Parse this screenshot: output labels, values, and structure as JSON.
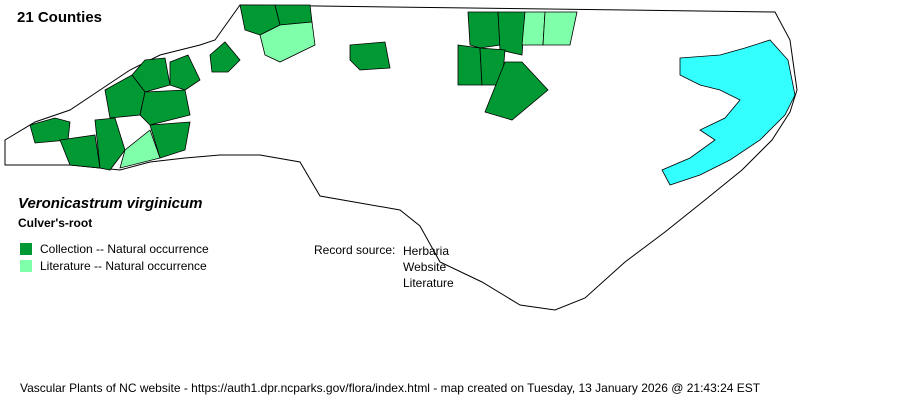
{
  "title": "21 Counties",
  "species": {
    "scientific": "Veronicastrum virginicum",
    "common": "Culver's-root"
  },
  "legend": [
    {
      "label": "Collection -- Natural occurrence",
      "color": "#009933"
    },
    {
      "label": "Literature -- Natural occurrence",
      "color": "#80ffaa"
    }
  ],
  "record_source": {
    "label": "Record source:",
    "items": [
      "Herbaria",
      "Website",
      "Literature"
    ]
  },
  "water_color": "#33ffff",
  "footer": "Vascular Plants of NC website - https://auth1.dpr.ncparks.gov/flora/index.html - map created on Tuesday, 13 January 2026 @ 21:43:24 EST"
}
